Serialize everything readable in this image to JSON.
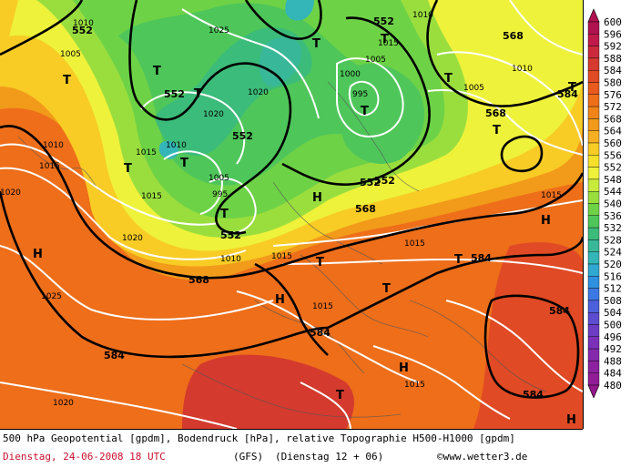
{
  "footer": {
    "line1": "500 hPa Geopotential [gpdm], Bodendruck [hPa], relative Topographie H500-H1000 [gpdm]",
    "date": "Dienstag, 24-06-2008  18 UTC",
    "model": "(GFS)",
    "run": "(Dienstag 12 + 06)",
    "credit": "©www.wetter3.de"
  },
  "legend": {
    "levels": [
      "600",
      "596",
      "592",
      "588",
      "584",
      "580",
      "576",
      "572",
      "568",
      "564",
      "560",
      "556",
      "552",
      "548",
      "544",
      "540",
      "536",
      "532",
      "528",
      "524",
      "520",
      "516",
      "512",
      "508",
      "504",
      "500",
      "496",
      "492",
      "488",
      "484",
      "480"
    ],
    "colors": [
      "#b0124f",
      "#c01a4a",
      "#cc2a3c",
      "#d43a2e",
      "#e04a24",
      "#e85a1e",
      "#ee6e1a",
      "#f08418",
      "#f29a1a",
      "#f4b020",
      "#f8cc24",
      "#f6e02a",
      "#eef23a",
      "#c8ea3a",
      "#9ade3e",
      "#6ed246",
      "#4ec65a",
      "#3cbc7a",
      "#38b898",
      "#34b6b8",
      "#30a8d0",
      "#3090e0",
      "#3c78e4",
      "#4c60dc",
      "#5c4cd0",
      "#6c3cc4",
      "#7a30b8",
      "#8428ac",
      "#8c22a0",
      "#901c96",
      "#92188c"
    ]
  },
  "map_labels": {
    "heights": [
      "552",
      "552",
      "552",
      "552",
      "552",
      "552",
      "568",
      "568",
      "568",
      "568",
      "584",
      "584",
      "584",
      "584",
      "584",
      "584",
      "552"
    ],
    "pressures": [
      "1010",
      "1005",
      "1025",
      "1020",
      "1020",
      "1010",
      "995",
      "1005",
      "1000",
      "1015",
      "1010",
      "1005",
      "1015",
      "1015",
      "1010",
      "1015",
      "1010",
      "1015",
      "1020",
      "1020",
      "1025",
      "1015",
      "1015",
      "1015",
      "1020",
      "1005",
      "995",
      "1010",
      "1015"
    ],
    "lows": [
      "T",
      "T",
      "T",
      "T",
      "T",
      "T",
      "T",
      "T",
      "T",
      "T",
      "T",
      "T",
      "T",
      "T",
      "T",
      "T"
    ],
    "highs": [
      "H",
      "H",
      "H",
      "H",
      "H",
      "H"
    ]
  }
}
